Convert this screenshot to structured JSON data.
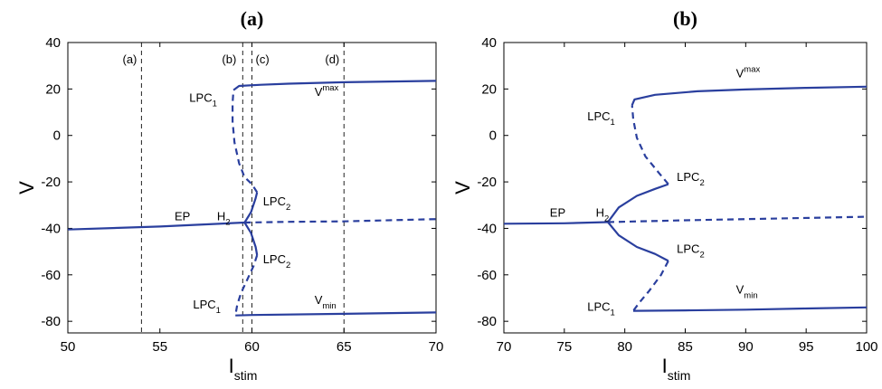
{
  "chart_data": [
    {
      "type": "line",
      "panel": "(a)",
      "title": "(a)",
      "xlabel": "I",
      "xlabel_sub": "stim",
      "ylabel": "V",
      "xlim": [
        50,
        70
      ],
      "ylim": [
        -85,
        40
      ],
      "xticks": [
        50,
        55,
        60,
        65,
        70
      ],
      "yticks": [
        -80,
        -60,
        -40,
        -20,
        0,
        20,
        40
      ],
      "grid": false,
      "color": "#2a3f9e",
      "vlines": [
        {
          "x": 54.0,
          "label": "(a)"
        },
        {
          "x": 59.5,
          "label": "(b)"
        },
        {
          "x": 60.0,
          "label": "(c)"
        },
        {
          "x": 65.0,
          "label": "(d)"
        }
      ],
      "series": [
        {
          "style": "solid",
          "points": [
            [
              50,
              -40.5
            ],
            [
              55,
              -39.2
            ],
            [
              59.6,
              -37.5
            ]
          ]
        },
        {
          "style": "dashed",
          "points": [
            [
              59.6,
              -37.5
            ],
            [
              62,
              -37.2
            ],
            [
              65,
              -37.0
            ],
            [
              70,
              -36.0
            ]
          ]
        },
        {
          "style": "solid",
          "points": [
            [
              59.6,
              -37.5
            ],
            [
              59.95,
              -33
            ],
            [
              60.2,
              -27
            ],
            [
              60.28,
              -24.5
            ]
          ]
        },
        {
          "style": "solid",
          "points": [
            [
              59.6,
              -37.5
            ],
            [
              59.95,
              -42
            ],
            [
              60.2,
              -48
            ],
            [
              60.28,
              -51.5
            ]
          ]
        },
        {
          "style": "dashed",
          "points": [
            [
              60.28,
              -24.5
            ],
            [
              60.0,
              -21
            ],
            [
              59.6,
              -18
            ],
            [
              59.3,
              -12
            ],
            [
              59.05,
              -3
            ],
            [
              58.95,
              6
            ],
            [
              58.95,
              14
            ],
            [
              59.0,
              19.5
            ]
          ]
        },
        {
          "style": "dashed",
          "points": [
            [
              60.28,
              -51.5
            ],
            [
              60.1,
              -56
            ],
            [
              59.75,
              -62
            ],
            [
              59.4,
              -68
            ],
            [
              59.2,
              -73
            ],
            [
              59.1,
              -77.5
            ]
          ]
        },
        {
          "style": "solid",
          "points": [
            [
              59.0,
              19.5
            ],
            [
              59.3,
              21.3
            ],
            [
              60.5,
              21.8
            ],
            [
              62,
              22.3
            ],
            [
              65,
              22.9
            ],
            [
              70,
              23.5
            ]
          ]
        },
        {
          "style": "solid",
          "points": [
            [
              59.1,
              -77.5
            ],
            [
              60,
              -77.3
            ],
            [
              65,
              -76.8
            ],
            [
              70,
              -76.2
            ]
          ]
        }
      ],
      "annotations": [
        {
          "text": "EP",
          "x": 55.8,
          "y": -36.5
        },
        {
          "text": "H",
          "sub": "2",
          "x": 58.1,
          "y": -36.5
        },
        {
          "text": "LPC",
          "sub": "1",
          "x": 56.6,
          "y": 14.5
        },
        {
          "text": "LPC",
          "sub": "2",
          "x": 60.6,
          "y": -30.0
        },
        {
          "text": "LPC",
          "sub": "2",
          "x": 60.6,
          "y": -55.0
        },
        {
          "text": "LPC",
          "sub": "1",
          "x": 56.8,
          "y": -74.5
        },
        {
          "text": "V",
          "sub": "max",
          "x": 63.4,
          "y": 17.0
        },
        {
          "text": "V",
          "sub": "min",
          "x": 63.4,
          "y": -72.5
        }
      ]
    },
    {
      "type": "line",
      "panel": "(b)",
      "title": "(b)",
      "xlabel": "I",
      "xlabel_sub": "stim",
      "ylabel": "V",
      "xlim": [
        70,
        100
      ],
      "ylim": [
        -85,
        40
      ],
      "xticks": [
        70,
        75,
        80,
        85,
        90,
        95,
        100
      ],
      "yticks": [
        -80,
        -60,
        -40,
        -20,
        0,
        20,
        40
      ],
      "grid": false,
      "color": "#2a3f9e",
      "vlines": [],
      "series": [
        {
          "style": "solid",
          "points": [
            [
              70,
              -38
            ],
            [
              75,
              -37.8
            ],
            [
              78.6,
              -37.3
            ]
          ]
        },
        {
          "style": "dashed",
          "points": [
            [
              78.6,
              -37.3
            ],
            [
              85,
              -36.5
            ],
            [
              92,
              -35.8
            ],
            [
              100,
              -35
            ]
          ]
        },
        {
          "style": "solid",
          "points": [
            [
              78.6,
              -37.3
            ],
            [
              79.5,
              -31
            ],
            [
              81,
              -26
            ],
            [
              82.5,
              -23
            ],
            [
              83.6,
              -21
            ]
          ]
        },
        {
          "style": "solid",
          "points": [
            [
              78.6,
              -37.3
            ],
            [
              79.5,
              -43
            ],
            [
              81,
              -48
            ],
            [
              82.5,
              -51
            ],
            [
              83.6,
              -54
            ]
          ]
        },
        {
          "style": "dashed",
          "points": [
            [
              83.6,
              -21
            ],
            [
              82.8,
              -16
            ],
            [
              81.7,
              -9
            ],
            [
              81.0,
              -1
            ],
            [
              80.7,
              7
            ],
            [
              80.6,
              13
            ]
          ]
        },
        {
          "style": "dashed",
          "points": [
            [
              83.6,
              -54
            ],
            [
              83.0,
              -60
            ],
            [
              82.0,
              -67
            ],
            [
              81.2,
              -72
            ],
            [
              80.7,
              -75.5
            ]
          ]
        },
        {
          "style": "solid",
          "points": [
            [
              80.6,
              13
            ],
            [
              80.8,
              15.5
            ],
            [
              82.5,
              17.5
            ],
            [
              86,
              19
            ],
            [
              90,
              19.8
            ],
            [
              95,
              20.5
            ],
            [
              100,
              21
            ]
          ]
        },
        {
          "style": "solid",
          "points": [
            [
              80.7,
              -75.5
            ],
            [
              85,
              -75.3
            ],
            [
              90,
              -75.0
            ],
            [
              95,
              -74.5
            ],
            [
              100,
              -74
            ]
          ]
        }
      ],
      "annotations": [
        {
          "text": "EP",
          "x": 73.8,
          "y": -35.0
        },
        {
          "text": "H",
          "sub": "2",
          "x": 77.6,
          "y": -35.0
        },
        {
          "text": "LPC",
          "sub": "1",
          "x": 76.9,
          "y": 6.5
        },
        {
          "text": "LPC",
          "sub": "2",
          "x": 84.3,
          "y": -19.5
        },
        {
          "text": "LPC",
          "sub": "2",
          "x": 84.3,
          "y": -50.5
        },
        {
          "text": "LPC",
          "sub": "1",
          "x": 76.9,
          "y": -75.5
        },
        {
          "text": "V",
          "sub": "max",
          "x": 89.2,
          "y": 25.0
        },
        {
          "text": "V",
          "sub": "min",
          "x": 89.2,
          "y": -68.0
        }
      ]
    }
  ]
}
